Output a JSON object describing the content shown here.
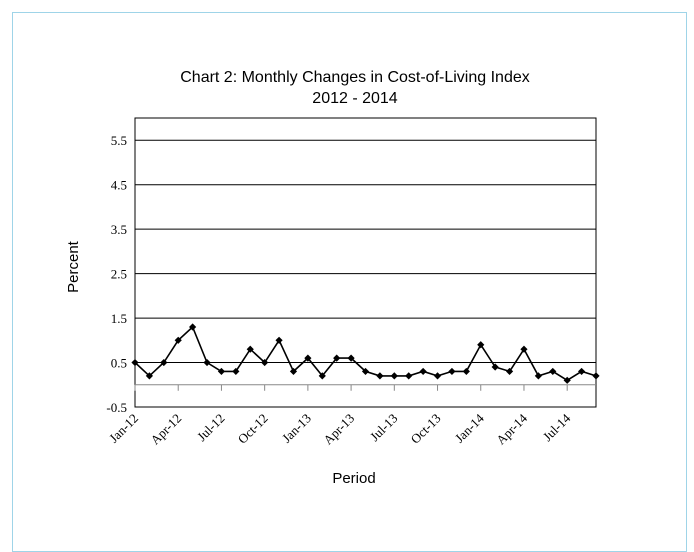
{
  "chart_data": {
    "type": "line",
    "title": "Chart 2: Monthly Changes in Cost-of-Living Index",
    "subtitle": "2012 - 2014",
    "xlabel": "Period",
    "ylabel": "Percent",
    "ylim": [
      -0.5,
      6.0
    ],
    "yticks": [
      "5.5",
      "4.5",
      "3.5",
      "2.5",
      "1.5",
      "0.5",
      "-0.5"
    ],
    "ytick_values": [
      5.5,
      4.5,
      3.5,
      2.5,
      1.5,
      0.5,
      -0.5
    ],
    "xtick_labels": [
      "Jan-12",
      "Apr-12",
      "Jul-12",
      "Oct-12",
      "Jan-13",
      "Apr-13",
      "Jul-13",
      "Oct-13",
      "Jan-14",
      "Apr-14",
      "Jul-14"
    ],
    "grid": true,
    "x": [
      "Jan-12",
      "Feb-12",
      "Mar-12",
      "Apr-12",
      "May-12",
      "Jun-12",
      "Jul-12",
      "Aug-12",
      "Sep-12",
      "Oct-12",
      "Nov-12",
      "Dec-12",
      "Jan-13",
      "Feb-13",
      "Mar-13",
      "Apr-13",
      "May-13",
      "Jun-13",
      "Jul-13",
      "Aug-13",
      "Sep-13",
      "Oct-13",
      "Nov-13",
      "Dec-13",
      "Jan-14",
      "Feb-14",
      "Mar-14",
      "Apr-14",
      "May-14",
      "Jun-14",
      "Jul-14",
      "Aug-14",
      "Sep-14"
    ],
    "values": [
      0.5,
      0.2,
      0.5,
      1.0,
      1.3,
      0.5,
      0.3,
      0.3,
      0.8,
      0.5,
      1.0,
      0.3,
      0.6,
      0.2,
      0.6,
      0.6,
      0.3,
      0.2,
      0.2,
      0.2,
      0.3,
      0.2,
      0.3,
      0.3,
      0.9,
      0.4,
      0.3,
      0.8,
      0.2,
      0.3,
      0.1,
      0.3,
      0.2
    ],
    "series_color": "#000000"
  }
}
